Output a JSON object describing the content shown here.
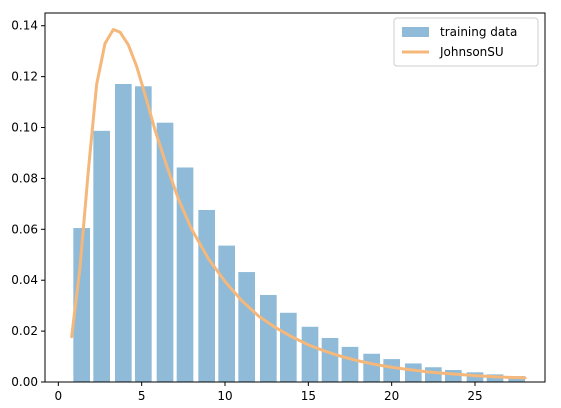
{
  "chart_data": {
    "type": "bar",
    "x_axis": {
      "range": [
        -0.8,
        29.2
      ],
      "ticks": [
        0,
        5,
        10,
        15,
        20,
        25
      ],
      "tick_labels": [
        "0",
        "5",
        "10",
        "15",
        "20",
        "25"
      ]
    },
    "y_axis": {
      "range": [
        0.0,
        0.145
      ],
      "ticks": [
        0.0,
        0.02,
        0.04,
        0.06,
        0.08,
        0.1,
        0.12,
        0.14
      ],
      "tick_labels": [
        "0.00",
        "0.02",
        "0.04",
        "0.06",
        "0.08",
        "0.10",
        "0.12",
        "0.14"
      ]
    },
    "grid": false,
    "legend": {
      "placement": "top-right",
      "entries": [
        {
          "label": "training data",
          "kind": "bar",
          "color": "#8fbbd9"
        },
        {
          "label": "JohnsonSU",
          "kind": "line",
          "color": "#f5b77a"
        }
      ]
    },
    "bars": {
      "name": "training data",
      "color": "#8fbbd9",
      "centers": [
        1.4,
        2.6,
        3.9,
        5.1,
        6.4,
        7.6,
        8.9,
        10.1,
        11.3,
        12.6,
        13.8,
        15.1,
        16.3,
        17.5,
        18.8,
        20.0,
        21.3,
        22.5,
        23.7,
        25.0,
        26.2,
        27.5
      ],
      "values": [
        0.0605,
        0.0987,
        0.1171,
        0.1162,
        0.1019,
        0.0843,
        0.0676,
        0.0536,
        0.0432,
        0.0342,
        0.0272,
        0.0217,
        0.0173,
        0.0138,
        0.0111,
        0.009,
        0.0073,
        0.0058,
        0.0047,
        0.0038,
        0.003,
        0.0023
      ]
    },
    "series": [
      {
        "name": "JohnsonSU",
        "type": "line",
        "color": "#f5b77a",
        "x": [
          0.8,
          1.3,
          1.8,
          2.3,
          2.8,
          3.3,
          3.7,
          4.2,
          4.7,
          5.2,
          5.8,
          6.5,
          7.2,
          8.0,
          9.0,
          10.0,
          11.0,
          12.0,
          13.0,
          14.0,
          15.0,
          16.0,
          17.0,
          18.0,
          19.0,
          20.0,
          21.0,
          22.0,
          23.0,
          24.0,
          25.0,
          26.0,
          27.0,
          28.0
        ],
        "y": [
          0.0178,
          0.045,
          0.083,
          0.117,
          0.133,
          0.1385,
          0.1375,
          0.1325,
          0.124,
          0.113,
          0.099,
          0.085,
          0.072,
          0.06,
          0.0485,
          0.0395,
          0.032,
          0.026,
          0.0215,
          0.0178,
          0.0146,
          0.0121,
          0.01,
          0.0083,
          0.0069,
          0.0058,
          0.0049,
          0.0041,
          0.0035,
          0.003,
          0.0025,
          0.0021,
          0.0018,
          0.0016
        ]
      }
    ]
  }
}
